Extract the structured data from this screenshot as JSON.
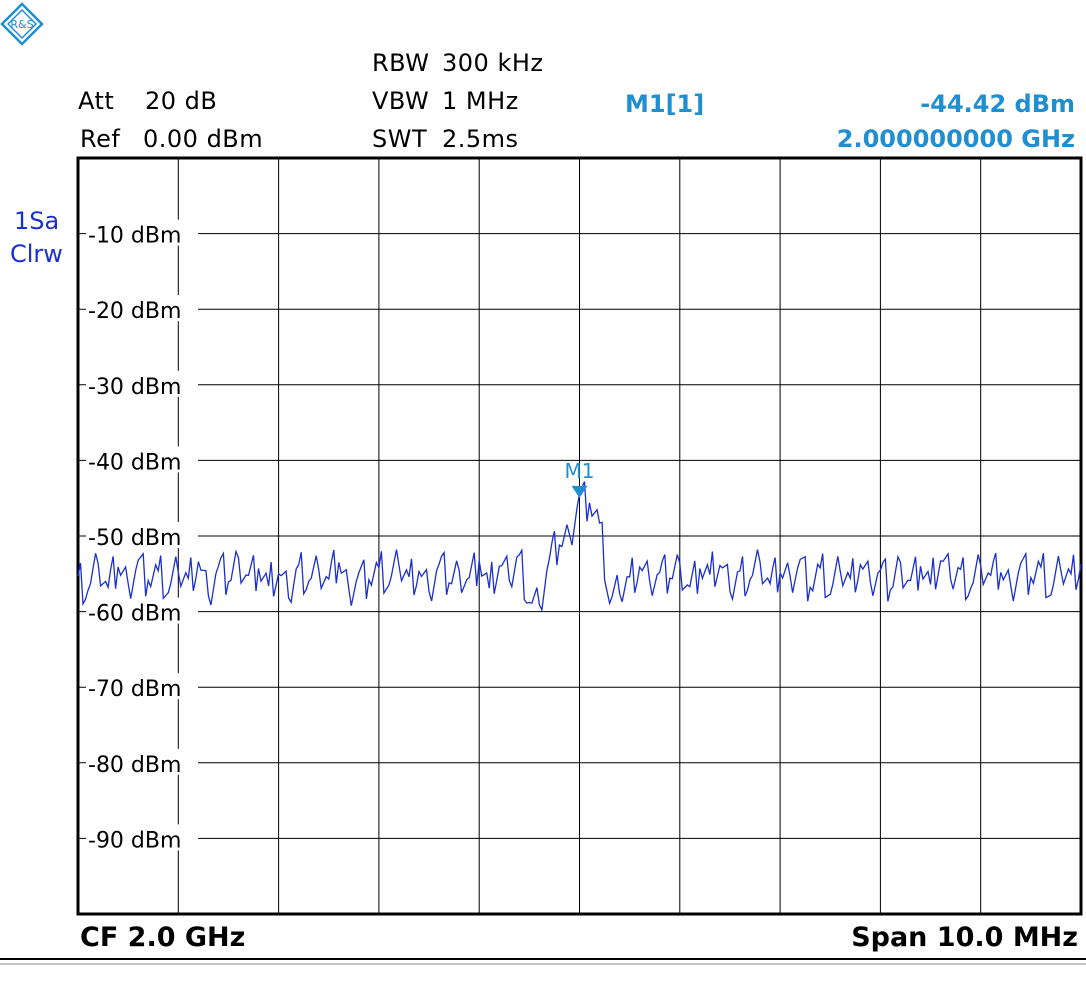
{
  "settings": {
    "att_label": "Att",
    "att_value": "20 dB",
    "ref_label": "Ref",
    "ref_value": "0.00 dBm",
    "rbw_label": "RBW",
    "rbw_value": "300 kHz",
    "vbw_label": "VBW",
    "vbw_value": "1 MHz",
    "swt_label": "SWT",
    "swt_value": "2.5ms"
  },
  "marker": {
    "name": "M1[1]",
    "level": "-44.42 dBm",
    "frequency": "2.000000000 GHz",
    "tag": "M1"
  },
  "trace": {
    "line1": "1Sa",
    "line2": "Clrw"
  },
  "footer": {
    "cf": "CF  2.0 GHz",
    "span": "Span  10.0 MHz"
  },
  "colors": {
    "trace": "#1a2fd0",
    "marker": "#1f8fd1",
    "grid": "#000000"
  },
  "chart_data": {
    "type": "line",
    "title": "",
    "xlabel": "",
    "ylabel": "",
    "xlim": [
      1995.0,
      2005.0
    ],
    "x_unit": "MHz",
    "ylim": [
      -100,
      0
    ],
    "y_ticks": [
      -10,
      -20,
      -30,
      -40,
      -50,
      -60,
      -70,
      -80,
      -90
    ],
    "y_tick_labels": [
      "-10 dBm",
      "-20 dBm",
      "-30 dBm",
      "-40 dBm",
      "-50 dBm",
      "-60 dBm",
      "-70 dBm",
      "-80 dBm",
      "-90 dBm"
    ],
    "grid": true,
    "x_divisions": 10,
    "y_divisions": 10,
    "series": [
      {
        "values": [
          [
            1995.0,
            -55.3
          ],
          [
            1995.1,
            -57.2
          ],
          [
            1995.2,
            -53.6
          ],
          [
            1995.3,
            -56.8
          ],
          [
            1995.4,
            -54.1
          ],
          [
            1995.5,
            -56.3
          ],
          [
            1995.6,
            -53.2
          ],
          [
            1995.7,
            -55.9
          ],
          [
            1995.8,
            -54.6
          ],
          [
            1995.9,
            -57.5
          ],
          [
            1996.0,
            -54.8
          ],
          [
            1996.1,
            -55.6
          ],
          [
            1996.2,
            -53.4
          ],
          [
            1996.3,
            -57.9
          ],
          [
            1996.4,
            -54.0
          ],
          [
            1996.5,
            -56.1
          ],
          [
            1996.6,
            -52.9
          ],
          [
            1996.7,
            -55.2
          ],
          [
            1996.8,
            -54.3
          ],
          [
            1996.9,
            -56.6
          ],
          [
            1997.0,
            -55.0
          ],
          [
            1997.1,
            -58.2
          ],
          [
            1997.2,
            -53.8
          ],
          [
            1997.3,
            -56.0
          ],
          [
            1997.4,
            -54.4
          ],
          [
            1997.5,
            -55.7
          ],
          [
            1997.6,
            -53.5
          ],
          [
            1997.7,
            -57.0
          ],
          [
            1997.8,
            -54.9
          ],
          [
            1997.9,
            -55.8
          ],
          [
            1998.0,
            -54.2
          ],
          [
            1998.1,
            -56.5
          ],
          [
            1998.2,
            -53.9
          ],
          [
            1998.3,
            -55.4
          ],
          [
            1998.4,
            -54.7
          ],
          [
            1998.5,
            -57.3
          ],
          [
            1998.6,
            -53.7
          ],
          [
            1998.7,
            -56.2
          ],
          [
            1998.8,
            -54.5
          ],
          [
            1998.9,
            -55.5
          ],
          [
            1999.0,
            -53.3
          ],
          [
            1999.1,
            -56.9
          ],
          [
            1999.2,
            -54.0
          ],
          [
            1999.3,
            -55.9
          ],
          [
            1999.4,
            -52.5
          ],
          [
            1999.5,
            -58.8
          ],
          [
            1999.6,
            -59.1
          ],
          [
            1999.7,
            -53.0
          ],
          [
            1999.8,
            -51.2
          ],
          [
            1999.9,
            -49.8
          ],
          [
            2000.0,
            -44.4
          ],
          [
            2000.1,
            -45.6
          ],
          [
            2000.2,
            -48.3
          ],
          [
            2000.3,
            -58.9
          ],
          [
            2000.4,
            -57.6
          ],
          [
            2000.5,
            -55.4
          ],
          [
            2000.6,
            -54.1
          ],
          [
            2000.7,
            -56.0
          ],
          [
            2000.8,
            -54.8
          ],
          [
            2000.9,
            -55.6
          ],
          [
            2001.0,
            -53.6
          ],
          [
            2001.1,
            -56.7
          ],
          [
            2001.2,
            -54.3
          ],
          [
            2001.3,
            -55.1
          ],
          [
            2001.4,
            -53.9
          ],
          [
            2001.5,
            -57.4
          ],
          [
            2001.6,
            -54.6
          ],
          [
            2001.7,
            -55.8
          ],
          [
            2001.8,
            -53.4
          ],
          [
            2001.9,
            -56.3
          ],
          [
            2002.0,
            -54.9
          ],
          [
            2002.1,
            -55.3
          ],
          [
            2002.2,
            -53.1
          ],
          [
            2002.3,
            -56.8
          ],
          [
            2002.4,
            -54.2
          ],
          [
            2002.5,
            -57.7
          ],
          [
            2002.6,
            -54.7
          ],
          [
            2002.7,
            -55.6
          ],
          [
            2002.8,
            -53.8
          ],
          [
            2002.9,
            -56.1
          ],
          [
            2003.0,
            -54.5
          ],
          [
            2003.1,
            -57.1
          ],
          [
            2003.2,
            -53.5
          ],
          [
            2003.3,
            -55.9
          ],
          [
            2003.4,
            -54.0
          ],
          [
            2003.5,
            -56.4
          ],
          [
            2003.6,
            -53.3
          ],
          [
            2003.7,
            -55.7
          ],
          [
            2003.8,
            -54.4
          ],
          [
            2003.9,
            -56.9
          ],
          [
            2004.0,
            -53.9
          ],
          [
            2004.1,
            -55.2
          ],
          [
            2004.2,
            -54.8
          ],
          [
            2004.3,
            -56.6
          ],
          [
            2004.4,
            -53.6
          ],
          [
            2004.5,
            -55.5
          ],
          [
            2004.6,
            -54.1
          ],
          [
            2004.7,
            -57.8
          ],
          [
            2004.8,
            -54.6
          ],
          [
            2004.9,
            -55.0
          ],
          [
            2005.0,
            -53.7
          ]
        ]
      }
    ],
    "markers": [
      {
        "name": "M1",
        "x": 2000.0,
        "y": -44.42
      }
    ]
  }
}
